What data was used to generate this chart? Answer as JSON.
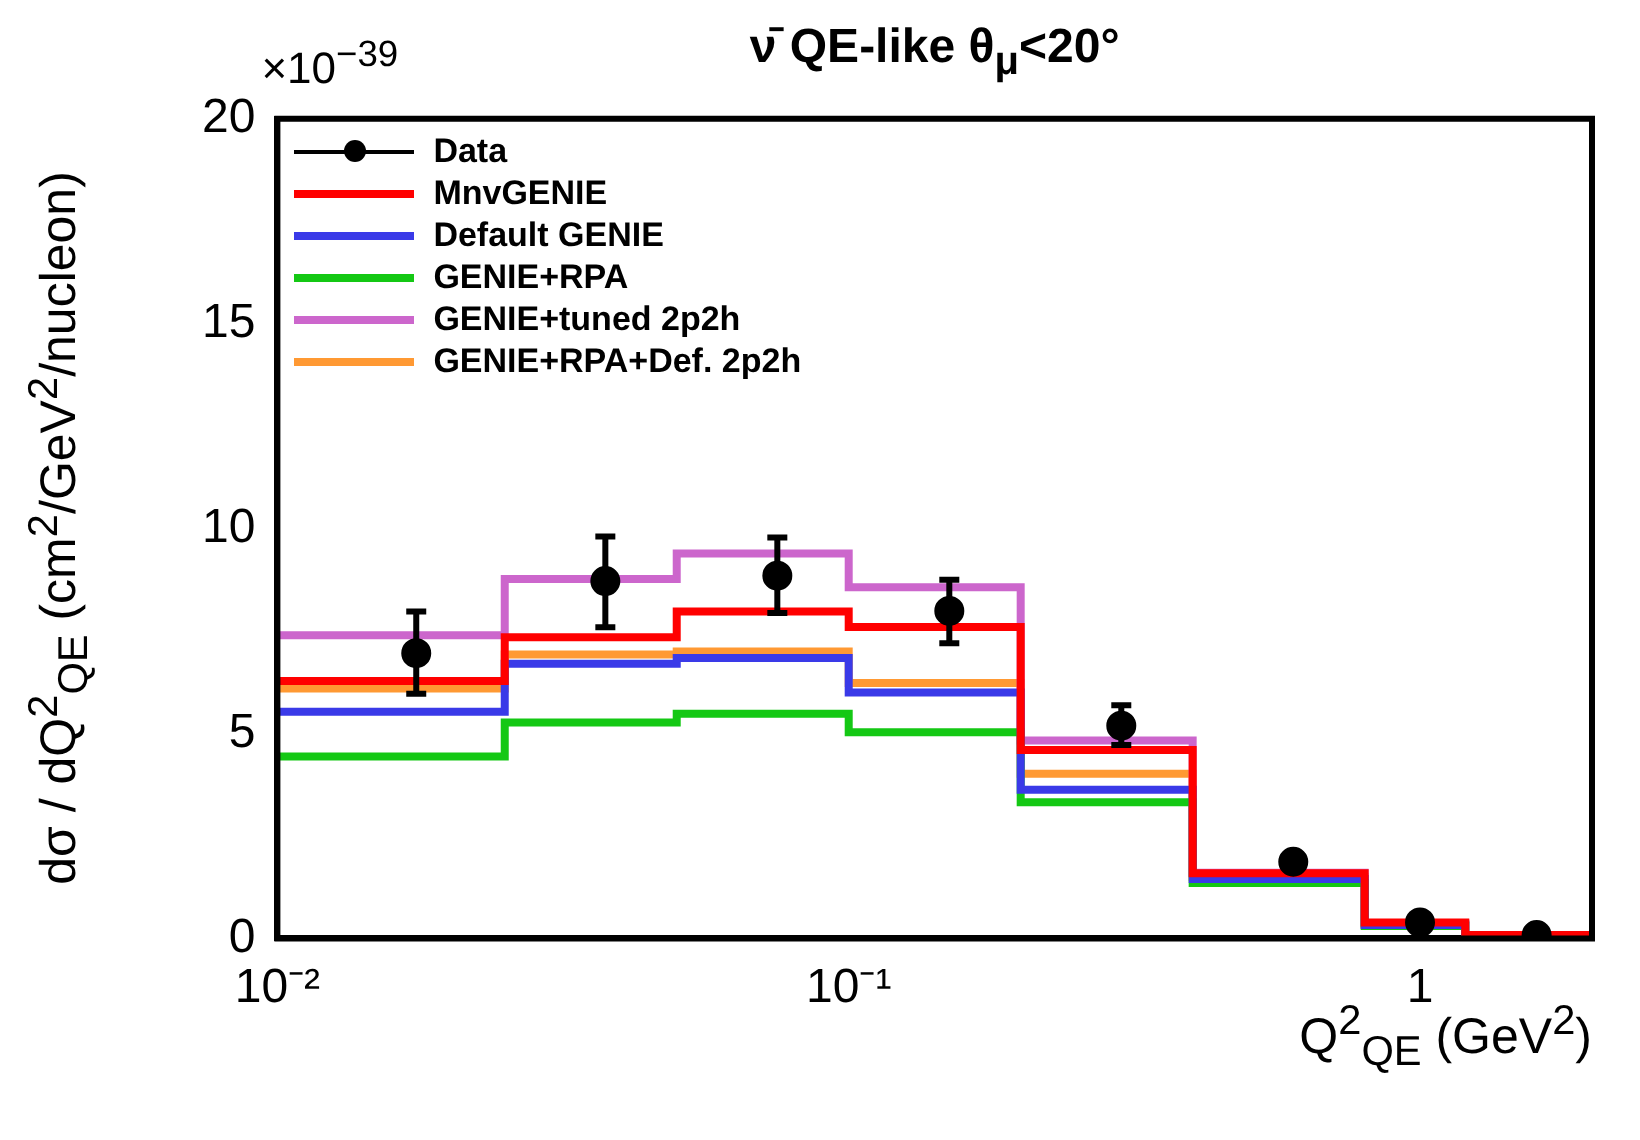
{
  "chart_data": {
    "type": "histogram",
    "title": "ν̄ QE-like  θ$_{μ}$<20°",
    "xlabel": "Q$^{2}$$_{QE}$ (GeV$^{2}$)",
    "ylabel": "dσ / dQ$^{2}$$_{QE}$ (cm$^{2}$/GeV$^{2}$/nucleon)",
    "annotations": [
      "×10$^{−39}$"
    ],
    "bins": [
      0.01,
      0.025,
      0.05,
      0.1,
      0.2,
      0.4,
      0.8,
      1.2,
      2.0
    ],
    "series": [
      {
        "name": "Data",
        "type": "scatter",
        "color": "#000000",
        "marker": "circle",
        "x": [
          0.0175,
          0.0375,
          0.075,
          0.15,
          0.3,
          0.6,
          1.0,
          1.6
        ],
        "values": [
          6.96,
          8.72,
          8.85,
          7.99,
          5.19,
          1.87,
          0.39,
          0.08
        ],
        "errors": [
          [
            5.97,
            7.98
          ],
          [
            7.59,
            9.81
          ],
          [
            7.94,
            9.78
          ],
          [
            7.2,
            8.75
          ],
          [
            4.72,
            5.69
          ],
          null,
          null,
          null
        ]
      },
      {
        "name": "MnvGENIE",
        "color": "#ff0000",
        "values": [
          6.28,
          7.35,
          7.98,
          7.6,
          4.6,
          1.59,
          0.39,
          0.08
        ]
      },
      {
        "name": "Default GENIE",
        "color": "#3a3ae8",
        "values": [
          5.53,
          6.7,
          6.84,
          6.0,
          3.63,
          1.45,
          0.33,
          0.06
        ]
      },
      {
        "name": "GENIE+RPA",
        "color": "#14c814",
        "values": [
          4.44,
          5.27,
          5.48,
          5.03,
          3.32,
          1.35,
          0.3,
          0.05
        ]
      },
      {
        "name": "GENIE+tuned 2p2h",
        "color": "#cc66cc",
        "values": [
          7.4,
          8.77,
          9.39,
          8.57,
          4.83,
          1.6,
          0.37,
          0.08
        ]
      },
      {
        "name": "GENIE+RPA+Def. 2p2h",
        "color": "#ff9933",
        "values": [
          6.1,
          6.93,
          7.0,
          6.23,
          4.02,
          1.5,
          0.35,
          0.07
        ]
      }
    ],
    "log": "x",
    "xlim": [
      0.01,
      2.0
    ],
    "xticks": [
      {
        "value": 0.01,
        "label": "10⁻²"
      },
      {
        "value": 0.1,
        "label": "10⁻¹"
      },
      1
    ],
    "ylim": [
      0,
      20
    ],
    "yticks": [
      0,
      5,
      10,
      15,
      20
    ],
    "grid": false,
    "legend": "top left"
  }
}
